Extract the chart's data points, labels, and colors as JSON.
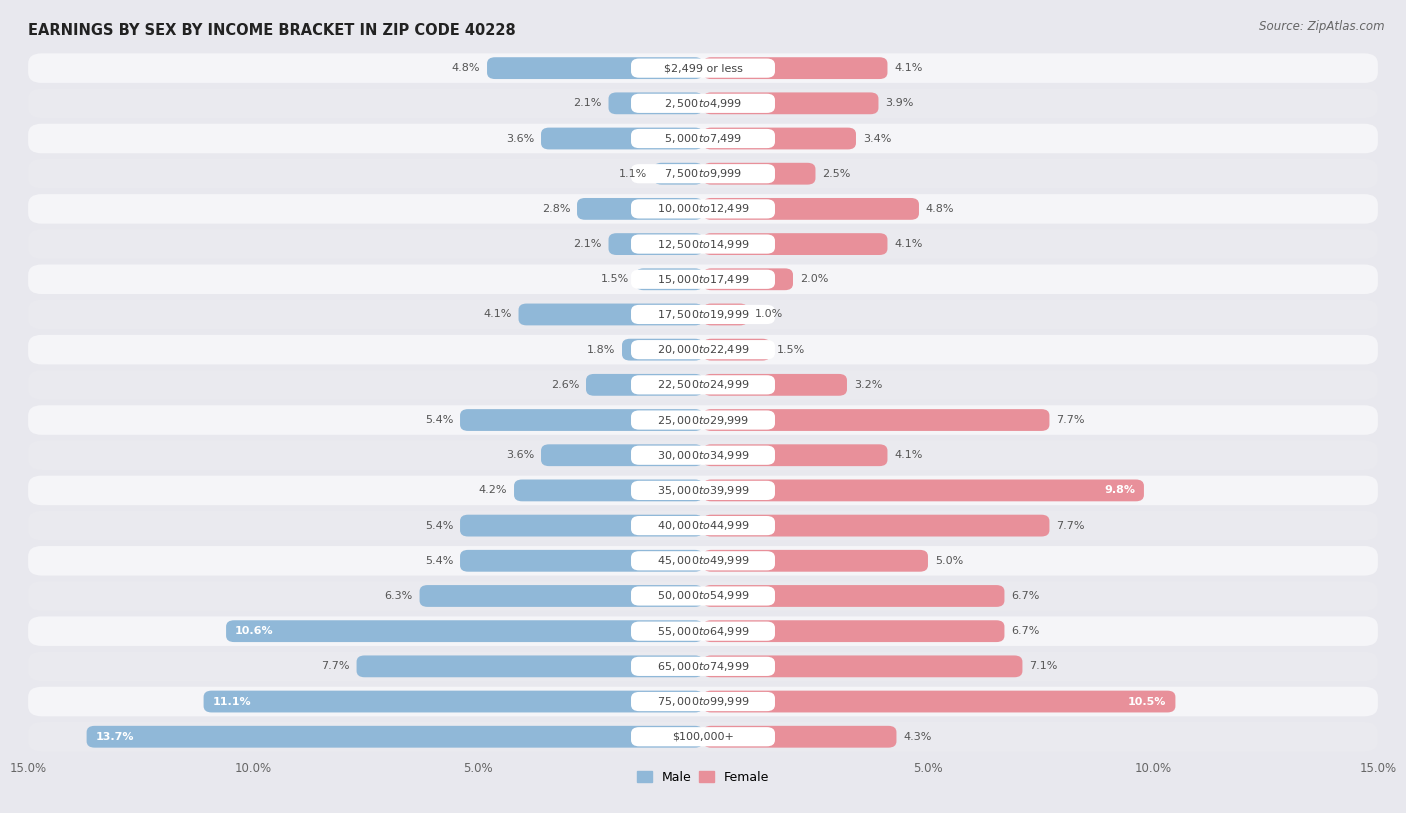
{
  "title": "EARNINGS BY SEX BY INCOME BRACKET IN ZIP CODE 40228",
  "source": "Source: ZipAtlas.com",
  "categories": [
    "$2,499 or less",
    "$2,500 to $4,999",
    "$5,000 to $7,499",
    "$7,500 to $9,999",
    "$10,000 to $12,499",
    "$12,500 to $14,999",
    "$15,000 to $17,499",
    "$17,500 to $19,999",
    "$20,000 to $22,499",
    "$22,500 to $24,999",
    "$25,000 to $29,999",
    "$30,000 to $34,999",
    "$35,000 to $39,999",
    "$40,000 to $44,999",
    "$45,000 to $49,999",
    "$50,000 to $54,999",
    "$55,000 to $64,999",
    "$65,000 to $74,999",
    "$75,000 to $99,999",
    "$100,000+"
  ],
  "male_values": [
    4.8,
    2.1,
    3.6,
    1.1,
    2.8,
    2.1,
    1.5,
    4.1,
    1.8,
    2.6,
    5.4,
    3.6,
    4.2,
    5.4,
    5.4,
    6.3,
    10.6,
    7.7,
    11.1,
    13.7
  ],
  "female_values": [
    4.1,
    3.9,
    3.4,
    2.5,
    4.8,
    4.1,
    2.0,
    1.0,
    1.5,
    3.2,
    7.7,
    4.1,
    9.8,
    7.7,
    5.0,
    6.7,
    6.7,
    7.1,
    10.5,
    4.3
  ],
  "male_color": "#90b8d8",
  "female_color": "#e8909a",
  "male_label": "Male",
  "female_label": "Female",
  "xlim": 15.0,
  "bg_color": "#e8e8ee",
  "row_bg_color": "#f0f0f5",
  "row_alt_color": "#e0e0e8",
  "title_fontsize": 10.5,
  "source_fontsize": 8.5,
  "label_fontsize": 8.0,
  "axis_fontsize": 8.5,
  "category_fontsize": 8.0,
  "white_label_threshold_male": 9.0,
  "white_label_threshold_female": 9.5
}
